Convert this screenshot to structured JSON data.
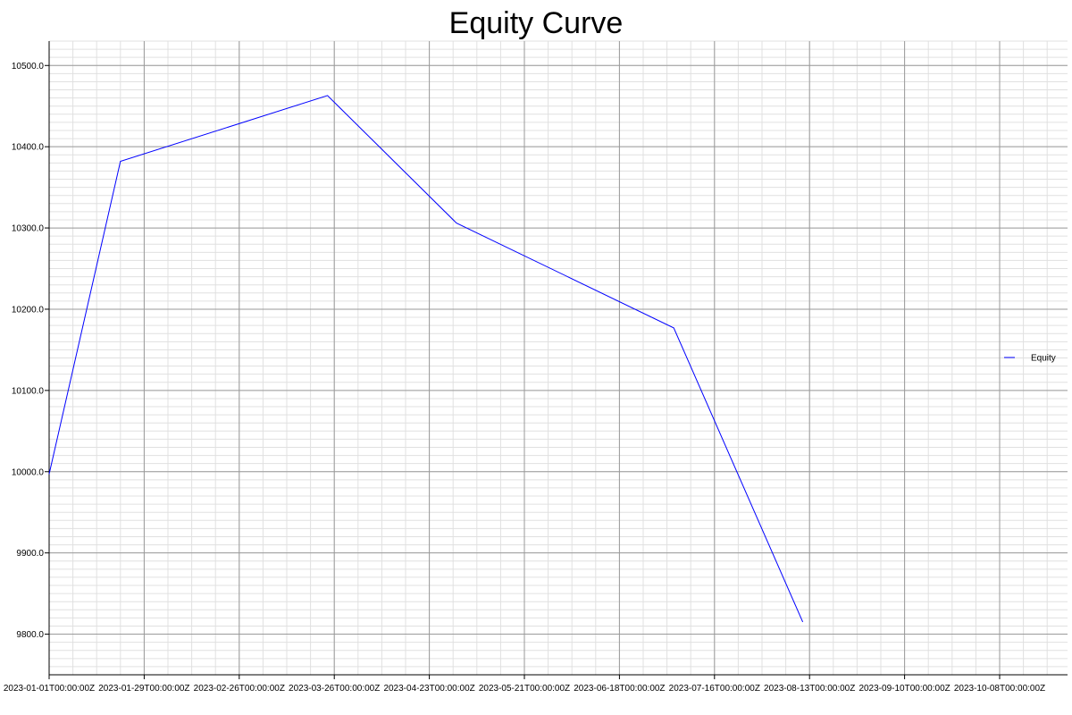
{
  "chart_data": {
    "type": "line",
    "title": "Equity Curve",
    "xlabel": "",
    "ylabel": "",
    "grid": true,
    "legend_position": "right",
    "x": [
      "2023-01-01",
      "2023-01-22",
      "2023-03-24",
      "2023-05-01",
      "2023-07-04",
      "2023-08-11"
    ],
    "series": [
      {
        "name": "Equity",
        "color": "#0000ff",
        "values": [
          9997,
          10382,
          10463,
          10306,
          10177,
          9815
        ]
      }
    ],
    "xlim": [
      "2023-01-01",
      "2023-10-28"
    ],
    "ylim": [
      9750,
      10530
    ],
    "x_ticks": [
      "2023-01-01T00:00:00Z",
      "2023-01-29T00:00:00Z",
      "2023-02-26T00:00:00Z",
      "2023-03-26T00:00:00Z",
      "2023-04-23T00:00:00Z",
      "2023-05-21T00:00:00Z",
      "2023-06-18T00:00:00Z",
      "2023-07-16T00:00:00Z",
      "2023-08-13T00:00:00Z",
      "2023-09-10T00:00:00Z",
      "2023-10-08T00:00:00Z"
    ],
    "y_ticks": [
      "9800.0",
      "9900.0",
      "10000.0",
      "10100.0",
      "10200.0",
      "10300.0",
      "10400.0",
      "10500.0"
    ]
  }
}
